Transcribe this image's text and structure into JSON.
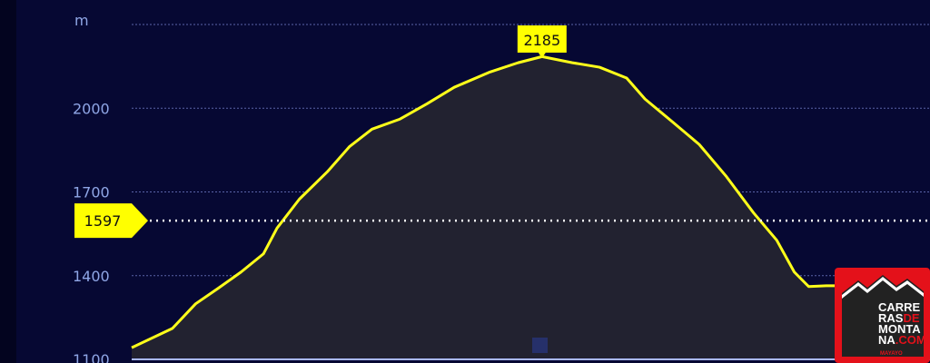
{
  "chart_data": {
    "type": "area",
    "ylabel": "m",
    "ylim": [
      1100,
      2300
    ],
    "yticks": [
      1100,
      1400,
      1700,
      2000
    ],
    "grid": true,
    "x": [
      0,
      5.1,
      8,
      10.8,
      13.7,
      16.5,
      18.2,
      21,
      24.5,
      27.3,
      30.1,
      33.6,
      37,
      40.4,
      44.9,
      48.4,
      51.4,
      55.2,
      58.6,
      62,
      64.3,
      67.7,
      71.1,
      74.5,
      77.9,
      80.8,
      83,
      84.8,
      87,
      88.2
    ],
    "values": [
      1142,
      1211,
      1299,
      1354,
      1413,
      1478,
      1570,
      1674,
      1772,
      1863,
      1925,
      1961,
      2016,
      2075,
      2130,
      2163,
      2185,
      2163,
      2147,
      2108,
      2033,
      1952,
      1870,
      1755,
      1625,
      1527,
      1413,
      1361,
      1364,
      1364
    ],
    "max_label": "2185",
    "max_x": 51.4,
    "cursor_value": 1597,
    "cursor_label": "1597",
    "colors": {
      "background": "#060833",
      "line": "#ffff1a",
      "fill": "#222230",
      "grid": "#5a63a8",
      "label": "#8fa6e6",
      "marker": "#ffff00"
    }
  },
  "logo": {
    "line1": "CARRE",
    "line2a": "RAS",
    "line2b": "DE",
    "line3": "MONTA",
    "line4a": "NA",
    "line4b": ".COM",
    "signature": "MAYAYO"
  }
}
